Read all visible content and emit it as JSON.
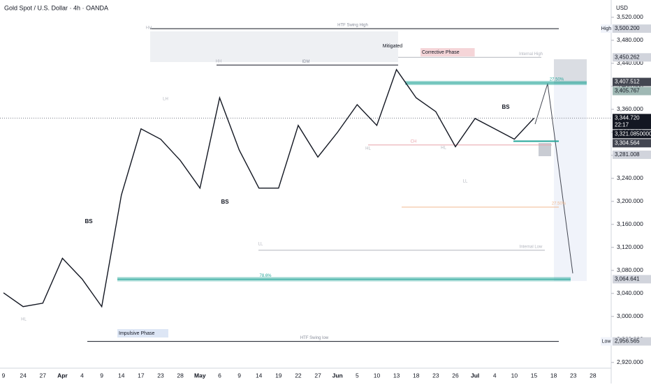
{
  "chart_data": {
    "type": "line",
    "title": "Gold Spot / U.S. Dollar · 4h · OANDA",
    "currency": "USD",
    "categories": [
      "9",
      "24",
      "27",
      "Apr",
      "4",
      "9",
      "14",
      "17",
      "23",
      "28",
      "May",
      "6",
      "9",
      "14",
      "19",
      "22",
      "27",
      "Jun",
      "5",
      "10",
      "13",
      "18",
      "23",
      "26",
      "Jul",
      "4",
      "10",
      "15",
      "18",
      "23",
      "28"
    ],
    "series": [
      {
        "name": "XAUUSD",
        "color": "#131722",
        "values": [
          3041,
          3017,
          3023,
          3101,
          3065,
          3017,
          3211,
          3326,
          3308,
          3271,
          3223,
          3380,
          3289,
          3223,
          3223,
          3332,
          3277,
          3320,
          3368,
          3332,
          3429,
          3380,
          3356,
          3295,
          3344,
          3326,
          3308,
          3344.72,
          null,
          null,
          null
        ]
      }
    ],
    "ylim": [
      2910,
      3550
    ],
    "yticks": [
      {
        "value": 2920,
        "label": "2,920.000"
      },
      {
        "value": 2960,
        "label": "2,960.000"
      },
      {
        "value": 3000,
        "label": "3,000.000"
      },
      {
        "value": 3040,
        "label": "3,040.000"
      },
      {
        "value": 3080,
        "label": "3,080.000"
      },
      {
        "value": 3120,
        "label": "3,120.000"
      },
      {
        "value": 3160,
        "label": "3,160.000"
      },
      {
        "value": 3200,
        "label": "3,200.000"
      },
      {
        "value": 3240,
        "label": "3,240.000"
      },
      {
        "value": 3280,
        "label": "3,280.000"
      },
      {
        "value": 3320,
        "label": "3,320.000"
      },
      {
        "value": 3360,
        "label": "3,360.000"
      },
      {
        "value": 3400,
        "label": "3,400.000"
      },
      {
        "value": 3440,
        "label": "3,440.000"
      },
      {
        "value": 3480,
        "label": "3,480.000"
      },
      {
        "value": 3520,
        "label": "3,520.000"
      }
    ],
    "price_labels": [
      {
        "tag": "High",
        "value": 3500.2,
        "label": "3,500.200",
        "color": "#d1d4dc"
      },
      {
        "value": 3450.262,
        "label": "3,450.262",
        "color": "#d1d4dc"
      },
      {
        "value": 3407.512,
        "label": "3,407.512",
        "color": "#434651"
      },
      {
        "value": 3405.767,
        "label": "3,405.767",
        "color": "#9fb8b4"
      },
      {
        "value": 3344.72,
        "label": "3,344.720",
        "color": "#131722",
        "countdown": "22:17"
      },
      {
        "value": 3321.085,
        "label": "3,321.08500000",
        "color": "#131722"
      },
      {
        "value": 3304.564,
        "label": "3,304.564",
        "color": "#434651"
      },
      {
        "value": 3281.008,
        "label": "3,281.008",
        "color": "#d1d4dc"
      },
      {
        "value": 3064.641,
        "label": "3,064.641",
        "color": "#d1d4dc"
      },
      {
        "tag": "Low",
        "value": 2956.565,
        "label": "2,956.565",
        "color": "#d1d4dc"
      }
    ],
    "levels": [
      {
        "label": "HTF Swing High",
        "value": 3500.2,
        "color": "#131722"
      },
      {
        "label": "Internal High",
        "value": 3450.262,
        "color": "#b2b5be"
      },
      {
        "label": "IDM",
        "value": 3437,
        "color": "#131722"
      },
      {
        "label": "27.50%",
        "value": 3405.767,
        "color": "#26a69a"
      },
      {
        "label": "CH",
        "value": 3298,
        "color": "#e8a0a8"
      },
      {
        "label": "27.50%",
        "value": 3190,
        "color": "#f0b890"
      },
      {
        "label": "Internal Low",
        "value": 3115,
        "color": "#b2b5be"
      },
      {
        "label": "78.6%",
        "value": 3064.641,
        "color": "#26a69a"
      },
      {
        "label": "HTF Swing low",
        "value": 2956.565,
        "color": "#131722"
      }
    ],
    "annotations": [
      "BS",
      "BS",
      "BS",
      "Mitigated",
      "Corrective Phase",
      "Impulsive Phase",
      "HH",
      "HH",
      "HL",
      "LH",
      "LL",
      "HL",
      "HL",
      "LL"
    ]
  }
}
